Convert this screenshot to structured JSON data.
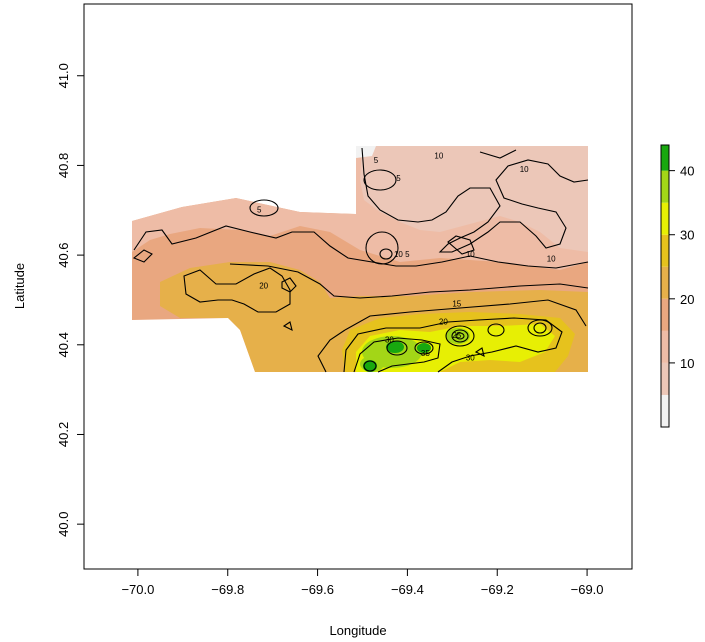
{
  "chart_data": {
    "type": "heatmap",
    "title": "",
    "xlabel": "Longitude",
    "ylabel": "Latitude",
    "xlim": [
      -70.12,
      -68.9
    ],
    "ylim": [
      39.9,
      41.16
    ],
    "x_ticks": [
      -70.0,
      -69.8,
      -69.6,
      -69.4,
      -69.2,
      -69.0
    ],
    "x_tick_labels": [
      "−70.0",
      "−69.8",
      "−69.6",
      "−69.4",
      "−69.2",
      "−69.0"
    ],
    "y_ticks": [
      40.0,
      40.2,
      40.4,
      40.6,
      40.8,
      41.0
    ],
    "y_tick_labels": [
      "40.0",
      "40.2",
      "40.4",
      "40.6",
      "40.8",
      "41.0"
    ],
    "grid": false,
    "legend_placement": "right",
    "colorbar": {
      "range": [
        0,
        44
      ],
      "ticks": [
        10,
        20,
        30,
        40
      ],
      "tick_labels": [
        "10",
        "20",
        "30",
        "40"
      ],
      "bands": [
        {
          "from": 0,
          "to": 5,
          "color": "#f2f2f2"
        },
        {
          "from": 5,
          "to": 10,
          "color": "#ecc7b8"
        },
        {
          "from": 10,
          "to": 15,
          "color": "#eebca6"
        },
        {
          "from": 15,
          "to": 20,
          "color": "#e9a780"
        },
        {
          "from": 20,
          "to": 25,
          "color": "#e6b04a"
        },
        {
          "from": 25,
          "to": 30,
          "color": "#e6c21d"
        },
        {
          "from": 30,
          "to": 35,
          "color": "#e7ef04"
        },
        {
          "from": 35,
          "to": 40,
          "color": "#a3d617"
        },
        {
          "from": 40,
          "to": 44,
          "color": "#18a80f"
        }
      ]
    },
    "contour_labels": [
      {
        "text": "5",
        "lon": -69.47,
        "lat": 40.81
      },
      {
        "text": "10",
        "lon": -69.33,
        "lat": 40.82
      },
      {
        "text": "10",
        "lon": -69.14,
        "lat": 40.79
      },
      {
        "text": "5",
        "lon": -69.42,
        "lat": 40.77
      },
      {
        "text": "5",
        "lon": -69.73,
        "lat": 40.7
      },
      {
        "text": "10",
        "lon": -69.42,
        "lat": 40.6
      },
      {
        "text": "5",
        "lon": -69.4,
        "lat": 40.6
      },
      {
        "text": "10",
        "lon": -69.26,
        "lat": 40.6
      },
      {
        "text": "10",
        "lon": -69.08,
        "lat": 40.59
      },
      {
        "text": "20",
        "lon": -69.72,
        "lat": 40.53
      },
      {
        "text": "15",
        "lon": -69.29,
        "lat": 40.49
      },
      {
        "text": "20",
        "lon": -69.32,
        "lat": 40.45
      },
      {
        "text": "25",
        "lon": -69.29,
        "lat": 40.42
      },
      {
        "text": "30",
        "lon": -69.44,
        "lat": 40.41
      },
      {
        "text": "35",
        "lon": -69.36,
        "lat": 40.38
      },
      {
        "text": "30",
        "lon": -69.26,
        "lat": 40.37
      }
    ]
  }
}
